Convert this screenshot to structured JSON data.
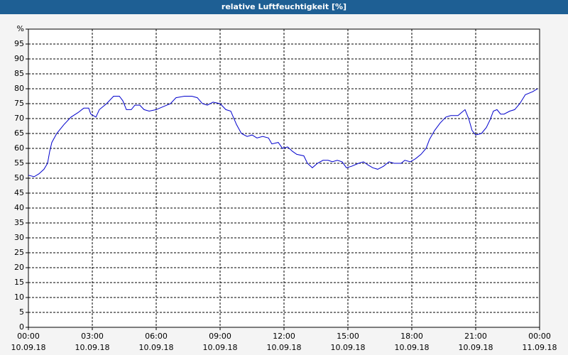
{
  "chart_data": {
    "type": "line",
    "title": "relative Luftfeuchtigkeit [%]",
    "x": [
      0,
      0.27,
      0.5,
      0.73,
      0.9,
      1,
      1.1,
      1.33,
      1.67,
      2,
      2.33,
      2.6,
      2.83,
      2.93,
      3.17,
      3.33,
      3.67,
      4,
      4.27,
      4.43,
      4.6,
      4.83,
      5,
      5.23,
      5.43,
      5.67,
      6,
      6.33,
      6.67,
      6.93,
      7.33,
      7.67,
      7.93,
      8.17,
      8.4,
      8.67,
      9,
      9.27,
      9.5,
      9.77,
      10,
      10.27,
      10.5,
      10.73,
      11,
      11.27,
      11.43,
      11.73,
      11.93,
      12.17,
      12.4,
      12.6,
      12.93,
      13.1,
      13.33,
      13.57,
      13.83,
      14.07,
      14.27,
      14.5,
      14.73,
      14.93,
      15.17,
      15.5,
      15.73,
      15.93,
      16.17,
      16.4,
      16.67,
      16.93,
      17.17,
      17.5,
      17.67,
      17.93,
      18.17,
      18.43,
      18.67,
      18.83,
      19.07,
      19.33,
      19.6,
      19.83,
      20.17,
      20.33,
      20.5,
      20.67,
      20.83,
      21,
      21.27,
      21.5,
      21.67,
      21.83,
      22,
      22.17,
      22.33,
      22.6,
      22.83,
      23.07,
      23.33,
      23.67,
      23.9
    ],
    "series": [
      {
        "color": "#0000cc",
        "values": [
          51,
          50.5,
          51.5,
          53,
          55,
          59,
          62,
          65,
          68,
          70.5,
          72,
          73.5,
          73.5,
          71.5,
          70.5,
          73,
          75,
          77.5,
          77.5,
          76,
          73,
          73,
          74.5,
          74.5,
          73,
          72.5,
          73,
          74,
          75,
          77,
          77.5,
          77.5,
          77,
          75,
          74.5,
          75.5,
          75,
          73,
          72.5,
          68,
          65,
          64,
          64.5,
          63.5,
          64,
          63.5,
          61.5,
          62,
          60,
          60.5,
          59,
          58,
          57.5,
          55,
          53.5,
          55,
          56,
          56,
          55.5,
          56,
          55.5,
          53.5,
          54,
          55,
          55.5,
          54.5,
          53.5,
          53,
          54,
          55.5,
          55,
          55,
          56,
          55.5,
          56.5,
          58,
          60,
          63,
          66,
          68.5,
          70.5,
          71,
          71,
          72,
          73,
          70,
          66,
          64.5,
          65,
          67,
          69.5,
          72.5,
          73,
          71.5,
          71.5,
          72.5,
          73,
          75,
          78,
          79,
          80
        ]
      }
    ],
    "xlim": [
      0,
      24
    ],
    "xticks": [
      {
        "value": 0,
        "label": "00:00\n10.09.18"
      },
      {
        "value": 3,
        "label": "03:00\n10.09.18"
      },
      {
        "value": 6,
        "label": "06:00\n10.09.18"
      },
      {
        "value": 9,
        "label": "09:00\n10.09.18"
      },
      {
        "value": 12,
        "label": "12:00\n10.09.18"
      },
      {
        "value": 15,
        "label": "15:00\n10.09.18"
      },
      {
        "value": 18,
        "label": "18:00\n10.09.18"
      },
      {
        "value": 21,
        "label": "21:00\n10.09.18"
      },
      {
        "value": 24,
        "label": "00:00\n11.09.18"
      }
    ],
    "ylim": [
      0,
      100
    ],
    "yticks": [
      0,
      5,
      10,
      15,
      20,
      25,
      30,
      35,
      40,
      45,
      50,
      55,
      60,
      65,
      70,
      75,
      80,
      85,
      90,
      95,
      {
        "value": 100,
        "label": "%"
      }
    ],
    "grid": true
  }
}
